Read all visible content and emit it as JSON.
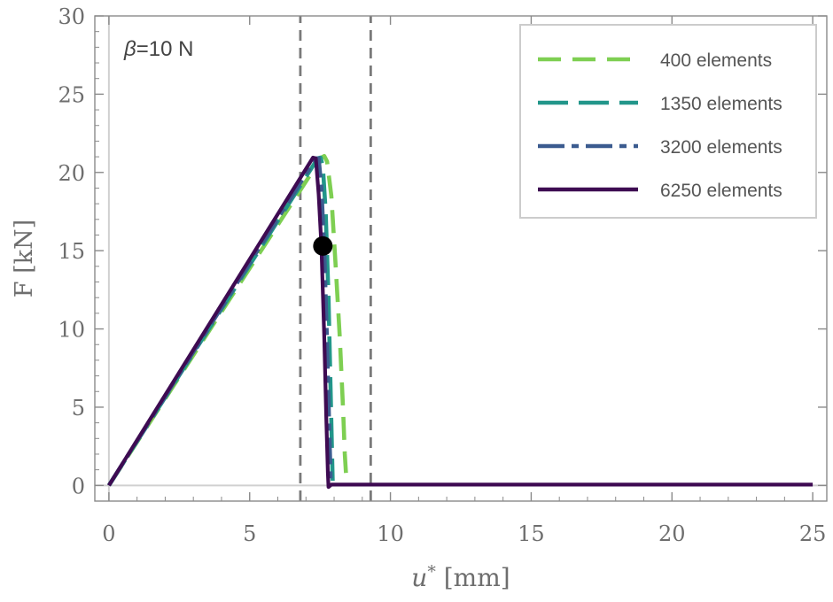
{
  "chart_data": {
    "type": "line",
    "xlabel_var": "u",
    "xlabel_sup": "*",
    "xlabel_unit": " [mm]",
    "ylabel": "F [kN]",
    "xlim": [
      -0.5,
      25.5
    ],
    "ylim": [
      -1,
      30
    ],
    "xticks": [
      0,
      5,
      10,
      15,
      20,
      25
    ],
    "yticks": [
      0,
      5,
      10,
      15,
      20,
      25,
      30
    ],
    "grid": false,
    "legend_position": "top-right",
    "annotation": {
      "symbol": "β",
      "text": "=10 N"
    },
    "vlines": [
      6.8,
      9.3
    ],
    "marker": {
      "x": 7.6,
      "y": 15.3
    },
    "series": [
      {
        "name": "400 elements",
        "color": "#7ecf52",
        "dash": "dashed",
        "x": [
          0,
          7.55,
          7.65,
          7.75,
          7.9,
          8.05,
          8.2,
          8.32,
          8.38,
          8.42
        ],
        "y": [
          0,
          20.95,
          21.05,
          20.7,
          18.5,
          14.2,
          9.5,
          4.8,
          2.0,
          0.8
        ]
      },
      {
        "name": "1350 elements",
        "color": "#22968a",
        "dash": "long-dash",
        "x": [
          0,
          7.42,
          7.52,
          7.6,
          7.7,
          7.8,
          7.87,
          7.92,
          7.95
        ],
        "y": [
          0,
          20.9,
          20.95,
          20.4,
          17.5,
          12.0,
          6.5,
          2.5,
          0.3
        ]
      },
      {
        "name": "3200 elements",
        "color": "#3b5b8f",
        "dash": "dash-dot",
        "x": [
          0,
          7.35,
          7.45,
          7.55,
          7.65,
          7.75,
          7.83,
          7.88
        ],
        "y": [
          0,
          20.9,
          20.9,
          19.0,
          15.0,
          9.0,
          3.5,
          0.2
        ]
      },
      {
        "name": "6250 elements",
        "color": "#3e0b52",
        "dash": "solid",
        "x": [
          0,
          7.25,
          7.35,
          7.45,
          7.55,
          7.65,
          7.72,
          7.78,
          7.8,
          7.9,
          25
        ],
        "y": [
          0,
          20.95,
          20.9,
          18.6,
          15.3,
          9.5,
          4.5,
          0.8,
          -0.1,
          0.05,
          0.05
        ]
      }
    ]
  }
}
